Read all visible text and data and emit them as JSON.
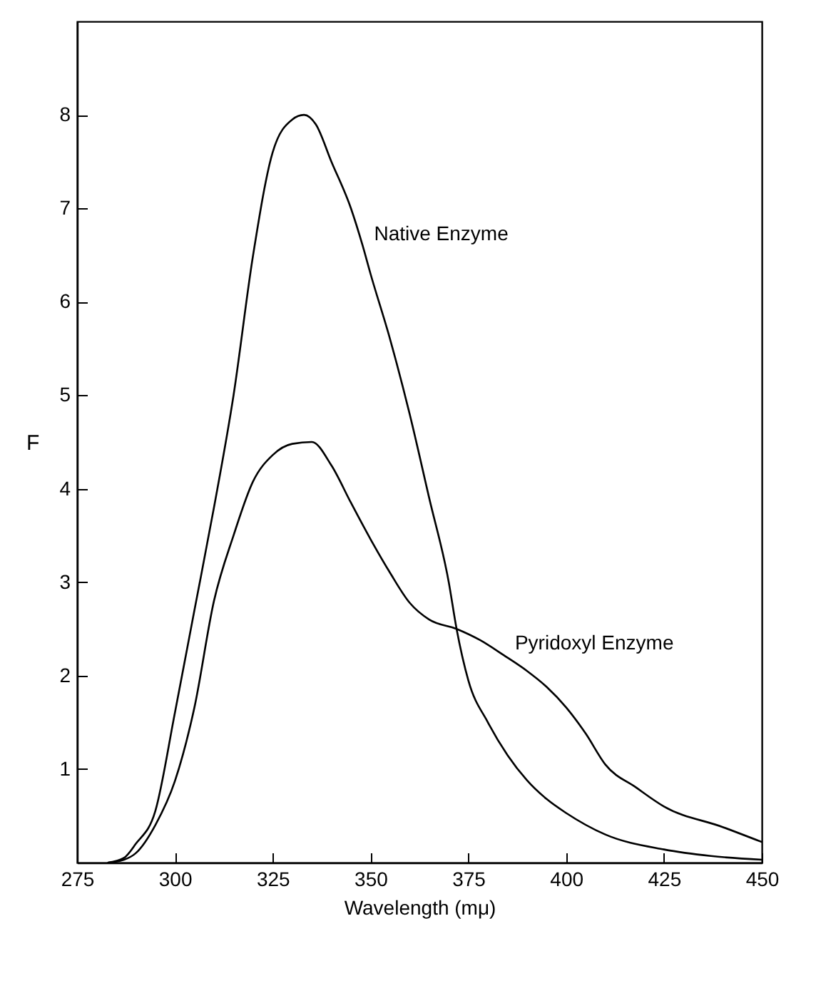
{
  "chart_data": {
    "type": "line",
    "xlabel": "Wavelength (mμ)",
    "ylabel": "F",
    "xlim": [
      275,
      450
    ],
    "ylim": [
      0,
      9
    ],
    "xticks": [
      275,
      300,
      325,
      350,
      375,
      400,
      425,
      450
    ],
    "yticks": [
      1,
      2,
      3,
      4,
      5,
      6,
      7,
      8
    ],
    "marker": "none",
    "line_style": "solid",
    "series": [
      {
        "name": "Native Enzyme",
        "color": "#000000",
        "x": [
          283,
          287,
          290,
          295,
          300,
          305,
          310,
          315,
          320,
          325,
          330,
          333,
          336,
          340,
          345,
          348,
          350,
          355,
          360,
          365,
          370,
          372,
          375,
          380,
          385,
          390,
          395,
          400,
          410,
          425,
          437,
          450
        ],
        "values": [
          0,
          0.05,
          0.2,
          0.55,
          1.6,
          2.7,
          3.8,
          5.0,
          6.5,
          7.6,
          7.95,
          8.0,
          7.9,
          7.5,
          7.0,
          6.6,
          6.3,
          5.6,
          4.8,
          3.9,
          3.0,
          2.5,
          1.95,
          1.5,
          1.15,
          0.88,
          0.68,
          0.53,
          0.3,
          0.14,
          0.07,
          0.03
        ]
      },
      {
        "name": "Pyridoxyl Enzyme",
        "color": "#000000",
        "x": [
          283,
          287,
          290,
          295,
          300,
          305,
          310,
          315,
          320,
          325,
          330,
          335,
          340,
          345,
          350,
          355,
          360,
          365,
          372,
          378,
          384,
          390,
          395,
          400,
          405,
          410,
          418,
          425,
          440,
          450
        ],
        "values": [
          0,
          0.03,
          0.1,
          0.4,
          0.87,
          1.66,
          2.8,
          3.5,
          4.08,
          4.36,
          4.48,
          4.5,
          4.25,
          3.85,
          3.46,
          3.1,
          2.78,
          2.6,
          2.5,
          2.38,
          2.22,
          2.05,
          1.88,
          1.66,
          1.38,
          1.05,
          0.8,
          0.6,
          0.38,
          0.22
        ]
      }
    ]
  }
}
